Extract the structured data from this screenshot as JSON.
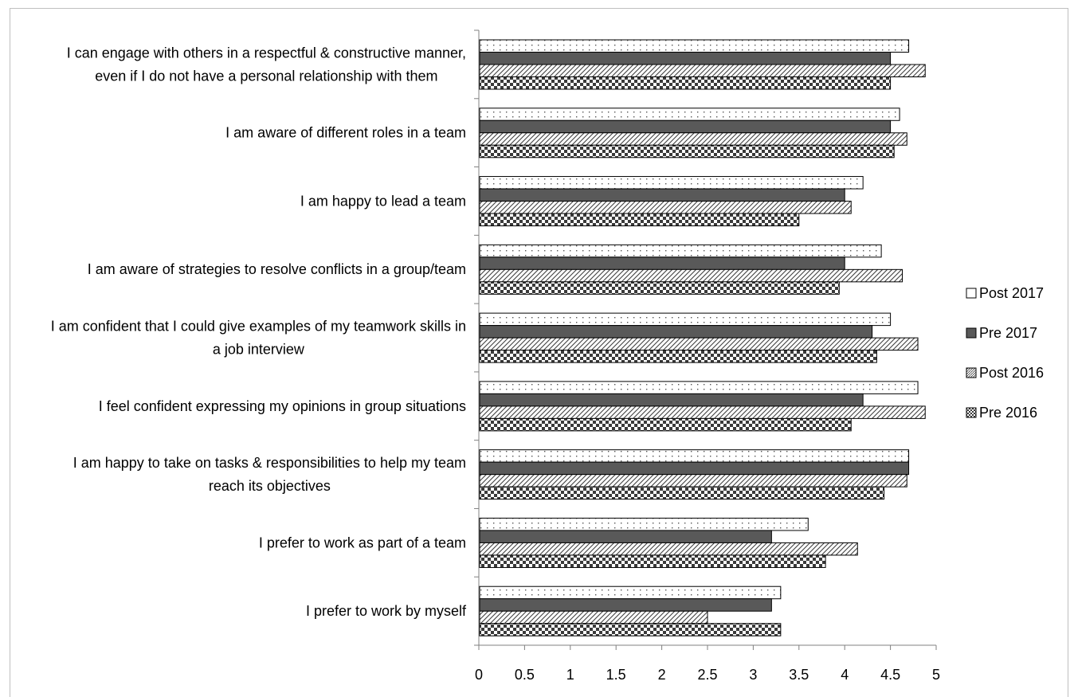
{
  "chart_data": {
    "type": "bar",
    "orientation": "horizontal",
    "categories": [
      [
        "I can engage with others in a respectful & constructive manner,",
        "even if I do not have a personal relationship with them"
      ],
      [
        "I am aware of different roles in a team"
      ],
      [
        "I am happy to lead a team"
      ],
      [
        "I am aware of strategies to resolve conflicts in a group/team"
      ],
      [
        "I am confident that I could give examples of my teamwork skills in",
        "a job interview"
      ],
      [
        "I feel confident expressing my opinions in group situations"
      ],
      [
        "I am happy to take on tasks & responsibilities to help my team",
        "reach its objectives"
      ],
      [
        "I prefer to work as part of a team"
      ],
      [
        "I prefer to work by myself"
      ]
    ],
    "series": [
      {
        "name": "Post 2017",
        "pattern": "dots",
        "color": "#ffffff",
        "values": [
          4.7,
          4.6,
          4.2,
          4.4,
          4.5,
          4.8,
          4.7,
          3.6,
          3.3
        ]
      },
      {
        "name": "Pre 2017",
        "pattern": "solid",
        "color": "#595959",
        "values": [
          4.5,
          4.5,
          4.0,
          4.0,
          4.3,
          4.2,
          4.7,
          3.2,
          3.2
        ]
      },
      {
        "name": "Post 2016",
        "pattern": "diagonal",
        "color": "#ffffff",
        "values": [
          4.88,
          4.68,
          4.07,
          4.63,
          4.8,
          4.88,
          4.68,
          4.14,
          2.5
        ]
      },
      {
        "name": "Pre 2016",
        "pattern": "checker",
        "color": "#000000",
        "values": [
          4.5,
          4.54,
          3.5,
          3.94,
          4.35,
          4.07,
          4.43,
          3.79,
          3.3
        ]
      }
    ],
    "xlim": [
      0,
      5
    ],
    "xticks": [
      "0",
      "0.5",
      "1",
      "1.5",
      "2",
      "2.5",
      "3",
      "3.5",
      "4",
      "4.5",
      "5"
    ],
    "legend_position": "right",
    "grid": false,
    "title": "",
    "xlabel": "",
    "ylabel": ""
  }
}
